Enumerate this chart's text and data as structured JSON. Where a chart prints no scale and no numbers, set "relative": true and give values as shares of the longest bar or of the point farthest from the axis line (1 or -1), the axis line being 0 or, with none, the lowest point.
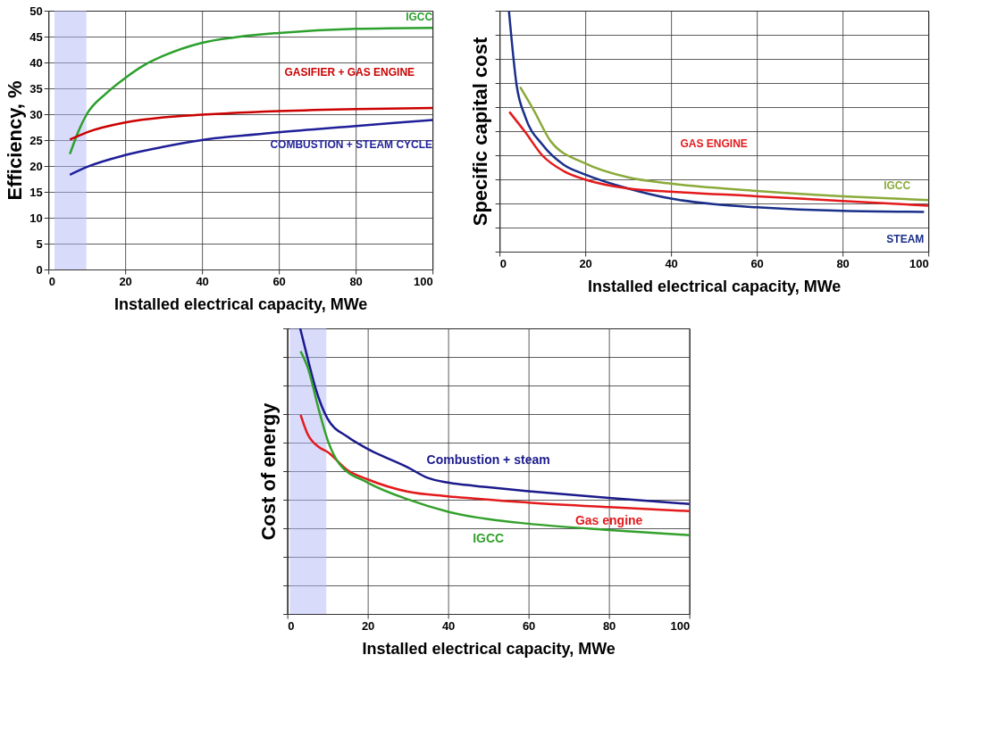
{
  "chart_data": [
    {
      "type": "line",
      "xlabel": "Installed electrical capacity, MWe",
      "ylabel": "Efficiency, %",
      "xlim": [
        0,
        100
      ],
      "xticks": [
        0,
        20,
        40,
        60,
        80,
        100
      ],
      "ylim": [
        0,
        50
      ],
      "yticks": [
        0,
        5,
        10,
        15,
        20,
        25,
        30,
        35,
        40,
        45,
        50
      ],
      "grid": true,
      "bands": [
        {
          "axis": "x",
          "from": 1.6,
          "to": 9.9,
          "color": "#b4b8f8"
        }
      ],
      "series": [
        {
          "name": "IGCC",
          "color": "#2ca02c",
          "x": [
            5.6,
            8,
            10,
            15,
            20,
            25,
            30,
            40,
            50,
            60,
            80,
            100
          ],
          "values": [
            22.3,
            27,
            30,
            34,
            37,
            39.5,
            41.3,
            43.8,
            45,
            45.7,
            46.5,
            46.7
          ]
        },
        {
          "name": "GASIFIER + GAS ENGINE",
          "color": "#cc0000",
          "x": [
            5.6,
            10,
            20,
            30,
            40,
            60,
            80,
            100
          ],
          "values": [
            25.1,
            26.5,
            28.4,
            29.4,
            29.9,
            30.6,
            31,
            31.2
          ]
        },
        {
          "name": "COMBUSTION + STEAM CYCLE",
          "color": "#1f1f99",
          "x": [
            5.6,
            10,
            20,
            30,
            40,
            60,
            80,
            100
          ],
          "values": [
            18.3,
            19.8,
            22.1,
            23.7,
            25,
            26.5,
            27.7,
            28.9
          ]
        }
      ]
    },
    {
      "type": "line",
      "relative": true,
      "xlabel": "Installed electrical capacity, MWe",
      "ylabel": "Specific capital cost",
      "xlim": [
        0,
        100
      ],
      "xticks": [
        0,
        20,
        40,
        60,
        80,
        100
      ],
      "grid": true,
      "series": [
        {
          "name": "STEAM",
          "color": "#1a2f8a",
          "x": [
            2.2,
            4,
            6,
            10,
            15,
            20,
            30,
            40,
            50,
            60,
            80,
            99
          ],
          "values": [
            1.0,
            0.69,
            0.56,
            0.444,
            0.36,
            0.32,
            0.262,
            0.22,
            0.197,
            0.184,
            0.169,
            0.165
          ]
        },
        {
          "name": "GAS ENGINE",
          "color": "#e31a1c",
          "x": [
            2.3,
            6,
            10,
            15,
            20,
            30,
            40,
            60,
            80,
            100
          ],
          "values": [
            0.58,
            0.496,
            0.399,
            0.334,
            0.299,
            0.262,
            0.249,
            0.23,
            0.21,
            0.191
          ]
        },
        {
          "name": "IGCC",
          "color": "#8aaa3a",
          "x": [
            4.8,
            8,
            12,
            20,
            30,
            40,
            60,
            80,
            100
          ],
          "values": [
            0.684,
            0.587,
            0.457,
            0.366,
            0.308,
            0.282,
            0.252,
            0.23,
            0.214
          ]
        }
      ]
    },
    {
      "type": "line",
      "relative": true,
      "xlabel": "Installed electrical capacity, MWe",
      "ylabel": "Cost of energy",
      "xlim": [
        0,
        100
      ],
      "xticks": [
        0,
        20,
        40,
        60,
        80,
        100
      ],
      "grid": true,
      "bands": [
        {
          "axis": "x",
          "from": 0.6,
          "to": 9.7,
          "color": "#b4b8f8"
        }
      ],
      "series": [
        {
          "name": "Combustion + steam",
          "color": "#1a1a8c",
          "x": [
            3.2,
            5,
            7,
            10,
            15,
            20,
            30,
            35,
            40,
            50,
            60,
            80,
            100
          ],
          "values": [
            1.0,
            0.898,
            0.791,
            0.684,
            0.62,
            0.578,
            0.513,
            0.476,
            0.46,
            0.444,
            0.43,
            0.406,
            0.385
          ]
        },
        {
          "name": "Gas engine",
          "color": "#e31a1c",
          "x": [
            3.3,
            5,
            8,
            10,
            15,
            20,
            30,
            40,
            60,
            80,
            100
          ],
          "values": [
            0.697,
            0.631,
            0.583,
            0.567,
            0.503,
            0.471,
            0.428,
            0.412,
            0.39,
            0.374,
            0.36
          ]
        },
        {
          "name": "IGCC",
          "color": "#33a02c",
          "x": [
            3.3,
            5,
            8,
            10,
            13,
            20,
            30,
            40,
            50,
            60,
            80,
            100
          ],
          "values": [
            0.92,
            0.866,
            0.706,
            0.61,
            0.524,
            0.46,
            0.401,
            0.358,
            0.332,
            0.316,
            0.294,
            0.276
          ]
        }
      ]
    }
  ]
}
